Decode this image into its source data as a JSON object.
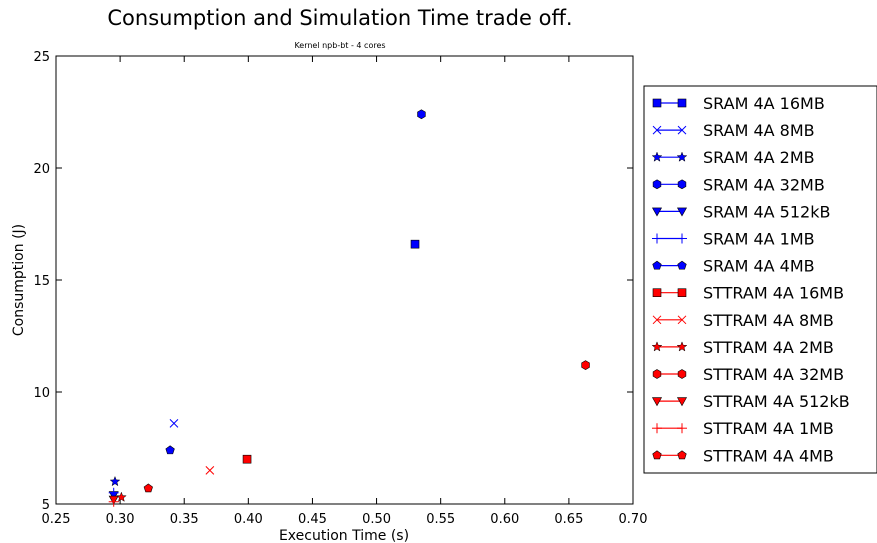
{
  "chart_data": {
    "type": "scatter",
    "title": "Consumption and Simulation Time trade off.",
    "subtitle": "Kernel npb-bt - 4 cores",
    "xlabel": "Execution Time (s)",
    "ylabel": "Consumption (J)",
    "xlim": [
      0.25,
      0.7
    ],
    "ylim": [
      5,
      25
    ],
    "xticks": [
      "0.25",
      "0.30",
      "0.35",
      "0.40",
      "0.45",
      "0.50",
      "0.55",
      "0.60",
      "0.65",
      "0.70"
    ],
    "yticks": [
      "5",
      "10",
      "15",
      "20",
      "25"
    ],
    "grid": false,
    "legend_position": "outside-right",
    "series": [
      {
        "name": "SRAM 4A 16MB",
        "marker": "square",
        "color": "#0000ff",
        "x": [
          0.53
        ],
        "y": [
          16.6
        ]
      },
      {
        "name": "SRAM 4A 8MB",
        "marker": "x",
        "color": "#0000ff",
        "x": [
          0.342
        ],
        "y": [
          8.6
        ]
      },
      {
        "name": "SRAM 4A 2MB",
        "marker": "star",
        "color": "#0000ff",
        "x": [
          0.296
        ],
        "y": [
          6.0
        ]
      },
      {
        "name": "SRAM 4A 32MB",
        "marker": "hexagon",
        "color": "#0000ff",
        "x": [
          0.535
        ],
        "y": [
          22.4
        ]
      },
      {
        "name": "SRAM 4A 512kB",
        "marker": "triangle-down",
        "color": "#0000ff",
        "x": [
          0.295
        ],
        "y": [
          5.4
        ]
      },
      {
        "name": "SRAM 4A 1MB",
        "marker": "plus",
        "color": "#0000ff",
        "x": [
          0.295
        ],
        "y": [
          5.5
        ]
      },
      {
        "name": "SRAM 4A 4MB",
        "marker": "pentagon",
        "color": "#0000ff",
        "x": [
          0.339
        ],
        "y": [
          7.4
        ]
      },
      {
        "name": "STTRAM 4A 16MB",
        "marker": "square",
        "color": "#ff0000",
        "x": [
          0.399
        ],
        "y": [
          7.0
        ]
      },
      {
        "name": "STTRAM 4A 8MB",
        "marker": "x",
        "color": "#ff0000",
        "x": [
          0.37
        ],
        "y": [
          6.5
        ]
      },
      {
        "name": "STTRAM 4A 2MB",
        "marker": "star",
        "color": "#ff0000",
        "x": [
          0.301
        ],
        "y": [
          5.3
        ]
      },
      {
        "name": "STTRAM 4A 32MB",
        "marker": "hexagon",
        "color": "#ff0000",
        "x": [
          0.663
        ],
        "y": [
          11.2
        ]
      },
      {
        "name": "STTRAM 4A 512kB",
        "marker": "triangle-down",
        "color": "#ff0000",
        "x": [
          0.295
        ],
        "y": [
          5.2
        ]
      },
      {
        "name": "STTRAM 4A 1MB",
        "marker": "plus",
        "color": "#ff0000",
        "x": [
          0.295
        ],
        "y": [
          5.1
        ]
      },
      {
        "name": "STTRAM 4A 4MB",
        "marker": "pentagon",
        "color": "#ff0000",
        "x": [
          0.322
        ],
        "y": [
          5.7
        ]
      }
    ]
  }
}
